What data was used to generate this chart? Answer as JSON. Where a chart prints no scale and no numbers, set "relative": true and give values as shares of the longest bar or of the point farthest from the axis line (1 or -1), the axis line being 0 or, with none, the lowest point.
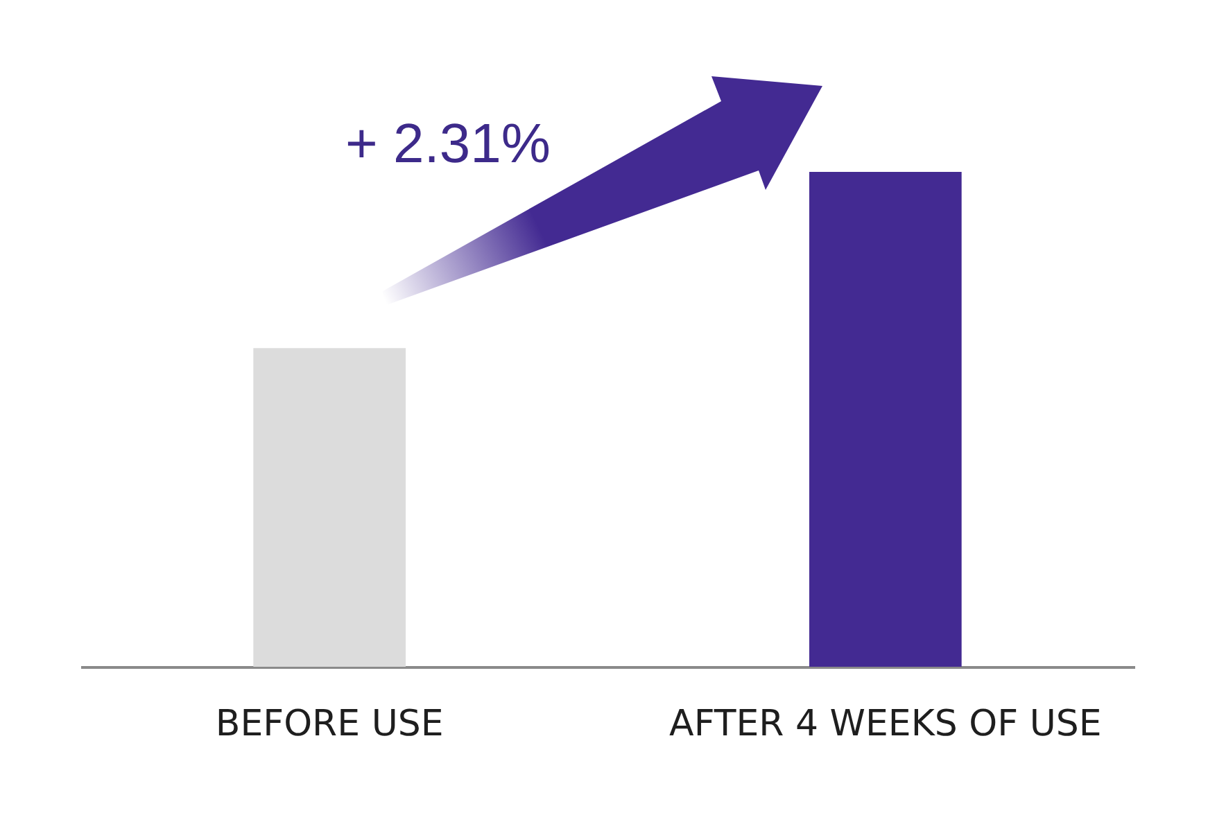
{
  "chart_data": {
    "type": "bar",
    "categories": [
      "BEFORE USE",
      "AFTER 4 WEEKS OF USE"
    ],
    "values": [
      0.644,
      1
    ],
    "colors": [
      "#dcdcdc",
      "#432a92"
    ],
    "relative": true,
    "annotations": [
      "+ 2.31%"
    ]
  }
}
